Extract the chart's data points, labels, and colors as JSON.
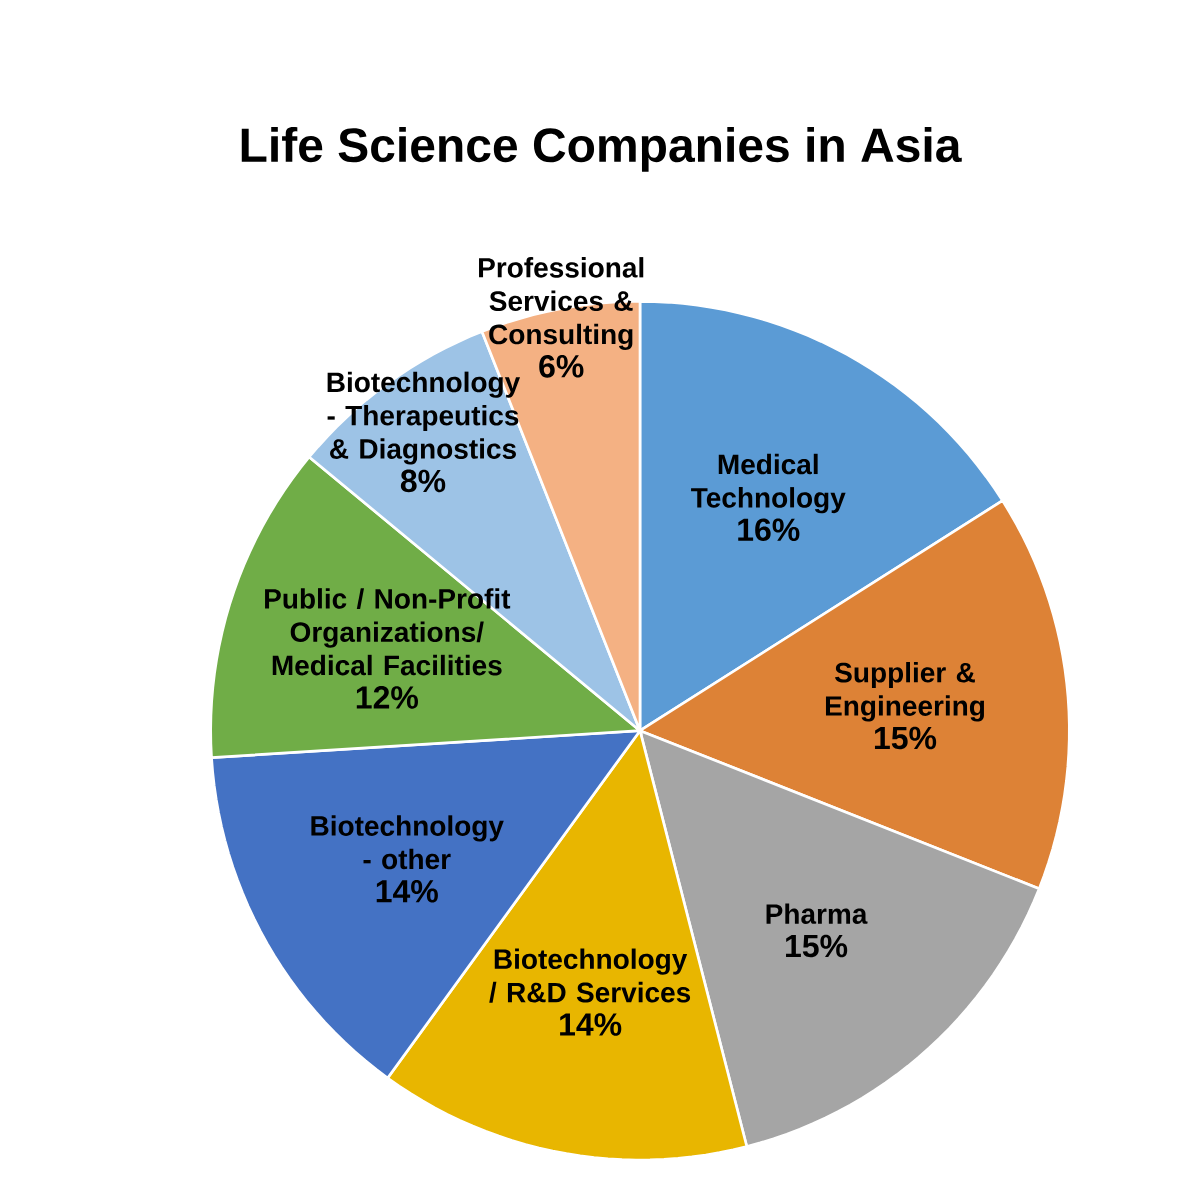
{
  "chart_data": {
    "type": "pie",
    "title": "Life Science Companies in Asia",
    "categories": [
      "Medical Technology",
      "Supplier & Engineering",
      "Pharma",
      "Biotechnology / R&D Services",
      "Biotechnology - other",
      "Public / Non-Profit Organizations/ Medical Facilities",
      "Biotechnology - Therapeutics & Diagnostics",
      "Professional Services & Consulting"
    ],
    "values": [
      16,
      15,
      15,
      14,
      14,
      12,
      8,
      6
    ],
    "value_labels": [
      "16%",
      "15%",
      "15%",
      "14%",
      "14%",
      "12%",
      "8%",
      "6%"
    ],
    "colors": [
      "#5b9bd5",
      "#dd8236",
      "#a5a5a5",
      "#e8b600",
      "#4472c4",
      "#70ad47",
      "#9dc3e6",
      "#f4b183"
    ]
  }
}
